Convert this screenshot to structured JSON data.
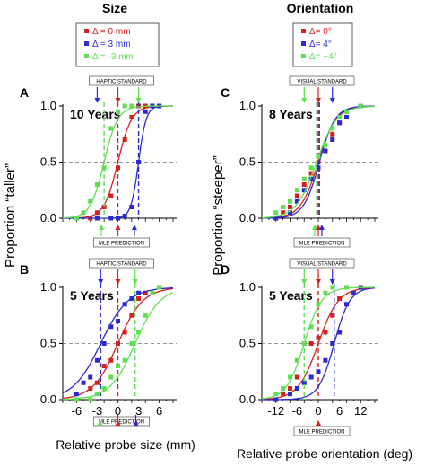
{
  "figure": {
    "col_titles": [
      "Size",
      "Orientation"
    ],
    "ylabel_size": "Proportion “taller”",
    "ylabel_orient": "Proportion “steeper”",
    "xlabel_size": "Relative probe size (mm)",
    "xlabel_orient": "Relative probe orientation (deg)"
  },
  "legends": {
    "size": [
      {
        "label": "Δ = 0 mm",
        "color": "#d62020"
      },
      {
        "label": "Δ = 3 mm",
        "color": "#2a2ad0"
      },
      {
        "label": "Δ = -3 mm",
        "color": "#5ee050"
      }
    ],
    "orient": [
      {
        "label": "Δ= 0°",
        "color": "#d62020"
      },
      {
        "label": "Δ= 4°",
        "color": "#2a2ad0"
      },
      {
        "label": "Δ= −4°",
        "color": "#5ee050"
      }
    ]
  },
  "colors": {
    "red": "#d62020",
    "blue": "#2a2ad0",
    "green": "#5ee050"
  },
  "chart_data": [
    {
      "panel": "A",
      "type": "scatter",
      "age_label": "10 Years",
      "top_box": "HAPTIC STANDARD",
      "bottom_box": "MLE PREDICTION",
      "xlim": [
        -8,
        8
      ],
      "ylim": [
        0,
        1
      ],
      "yticks": [
        "0.0",
        "0.5",
        "1.0"
      ],
      "xticks": [],
      "series": [
        {
          "color": "red",
          "pse": 0,
          "slope": 1.0,
          "points": [
            [
              -6,
              0
            ],
            [
              -4,
              0
            ],
            [
              -3,
              0.05
            ],
            [
              -2,
              0.1
            ],
            [
              -1,
              0.2
            ],
            [
              0,
              0.45
            ],
            [
              1,
              0.7
            ],
            [
              2,
              0.9
            ],
            [
              3,
              1.0
            ],
            [
              4,
              1.0
            ],
            [
              6,
              1.0
            ]
          ]
        },
        {
          "color": "blue",
          "pse": 3,
          "slope": 1.8,
          "points": [
            [
              -6,
              0
            ],
            [
              -3,
              0
            ],
            [
              -1,
              0
            ],
            [
              0,
              0
            ],
            [
              1,
              0.02
            ],
            [
              2,
              0.1
            ],
            [
              3,
              0.5
            ],
            [
              4,
              0.95
            ],
            [
              5,
              1.0
            ],
            [
              6,
              1.0
            ]
          ]
        },
        {
          "color": "green",
          "pse": -2,
          "slope": 1.0,
          "points": [
            [
              -6,
              0
            ],
            [
              -5,
              0.05
            ],
            [
              -4,
              0.15
            ],
            [
              -3,
              0.3
            ],
            [
              -2,
              0.45
            ],
            [
              -1,
              0.8
            ],
            [
              0,
              0.95
            ],
            [
              1,
              1.0
            ],
            [
              2,
              1.0
            ]
          ]
        }
      ],
      "arrows_top": [
        {
          "x": -3,
          "color": "blue"
        },
        {
          "x": 0,
          "color": "red"
        },
        {
          "x": 3,
          "color": "green"
        }
      ],
      "arrows_bottom": [
        {
          "x": -2.4,
          "color": "green"
        },
        {
          "x": 0,
          "color": "red"
        },
        {
          "x": 2.4,
          "color": "blue"
        }
      ]
    },
    {
      "panel": "B",
      "type": "scatter",
      "age_label": "5 Years",
      "top_box": "HAPTIC STANDARD",
      "bottom_box": "MLE PREDICTION",
      "xlim": [
        -8,
        8
      ],
      "ylim": [
        0,
        1
      ],
      "yticks": [
        "0.0",
        "0.5",
        "1.0"
      ],
      "xticks": [
        "-6",
        "-3",
        "0",
        "3",
        "6"
      ],
      "series": [
        {
          "color": "red",
          "pse": 0,
          "slope": 0.55,
          "points": [
            [
              -6,
              0
            ],
            [
              -4,
              0.1
            ],
            [
              -3,
              0.15
            ],
            [
              -2,
              0.3
            ],
            [
              -1,
              0.35
            ],
            [
              0,
              0.5
            ],
            [
              1,
              0.6
            ],
            [
              2,
              0.75
            ],
            [
              3,
              0.9
            ],
            [
              4,
              0.95
            ],
            [
              6,
              1.0
            ]
          ]
        },
        {
          "color": "blue",
          "pse": -2.5,
          "slope": 0.5,
          "points": [
            [
              -6,
              0.05
            ],
            [
              -5,
              0.15
            ],
            [
              -4,
              0.2
            ],
            [
              -3,
              0.35
            ],
            [
              -2,
              0.5
            ],
            [
              -1,
              0.65
            ],
            [
              0,
              0.7
            ],
            [
              1,
              0.85
            ],
            [
              2,
              0.9
            ],
            [
              3,
              0.95
            ],
            [
              6,
              1.0
            ]
          ]
        },
        {
          "color": "green",
          "pse": 2.5,
          "slope": 0.55,
          "points": [
            [
              -6,
              0
            ],
            [
              -4,
              0
            ],
            [
              -3,
              0.05
            ],
            [
              -2,
              0.1
            ],
            [
              -1,
              0.2
            ],
            [
              0,
              0.3
            ],
            [
              1,
              0.35
            ],
            [
              2,
              0.5
            ],
            [
              3,
              0.6
            ],
            [
              4,
              0.75
            ],
            [
              5,
              0.95
            ],
            [
              6,
              1.0
            ]
          ]
        }
      ],
      "arrows_top": [
        {
          "x": -2.5,
          "color": "blue"
        },
        {
          "x": 0,
          "color": "red"
        },
        {
          "x": 2.5,
          "color": "green"
        }
      ],
      "arrows_bottom": [
        {
          "x": -2.6,
          "color": "green"
        },
        {
          "x": 0,
          "color": "red"
        },
        {
          "x": 2.6,
          "color": "blue"
        }
      ]
    },
    {
      "panel": "C",
      "type": "scatter",
      "age_label": "8 Years",
      "top_box": "VISUAL STANDARD",
      "bottom_box": "MLE PREDICTION",
      "xlim": [
        -16,
        16
      ],
      "ylim": [
        0,
        1
      ],
      "yticks": [
        "0.0",
        "0.5",
        "1.0"
      ],
      "xticks": [],
      "series": [
        {
          "color": "red",
          "pse": 0,
          "slope": 0.4,
          "points": [
            [
              -12,
              0
            ],
            [
              -10,
              0.05
            ],
            [
              -8,
              0.1
            ],
            [
              -6,
              0.2
            ],
            [
              -4,
              0.3
            ],
            [
              -2,
              0.4
            ],
            [
              0,
              0.5
            ],
            [
              2,
              0.6
            ],
            [
              4,
              0.75
            ],
            [
              6,
              0.85
            ],
            [
              8,
              0.95
            ],
            [
              12,
              1.0
            ]
          ]
        },
        {
          "color": "blue",
          "pse": 0.3,
          "slope": 0.45,
          "points": [
            [
              -12,
              0
            ],
            [
              -8,
              0.05
            ],
            [
              -6,
              0.15
            ],
            [
              -4,
              0.25
            ],
            [
              -2,
              0.35
            ],
            [
              0,
              0.45
            ],
            [
              2,
              0.6
            ],
            [
              4,
              0.7
            ],
            [
              6,
              0.85
            ],
            [
              8,
              0.9
            ],
            [
              12,
              1.0
            ]
          ]
        },
        {
          "color": "green",
          "pse": -0.5,
          "slope": 0.35,
          "points": [
            [
              -12,
              0.05
            ],
            [
              -10,
              0.1
            ],
            [
              -8,
              0.15
            ],
            [
              -6,
              0.25
            ],
            [
              -4,
              0.35
            ],
            [
              -2,
              0.45
            ],
            [
              0,
              0.55
            ],
            [
              2,
              0.65
            ],
            [
              4,
              0.8
            ],
            [
              6,
              0.9
            ],
            [
              8,
              0.95
            ],
            [
              12,
              1.0
            ]
          ]
        }
      ],
      "arrows_top": [
        {
          "x": -4,
          "color": "green"
        },
        {
          "x": 0,
          "color": "red"
        },
        {
          "x": 4,
          "color": "blue"
        }
      ],
      "arrows_bottom": [
        {
          "x": -1,
          "color": "green"
        },
        {
          "x": 0,
          "color": "red"
        },
        {
          "x": 1,
          "color": "blue"
        }
      ]
    },
    {
      "panel": "D",
      "type": "scatter",
      "age_label": "5 Years",
      "top_box": "VISUAL STANDARD",
      "bottom_box": "MLE PREDICTION",
      "xlim": [
        -16,
        16
      ],
      "ylim": [
        0,
        1
      ],
      "yticks": [
        "0.0",
        "0.5",
        "1.0"
      ],
      "xticks": [
        "-12",
        "-6",
        "0",
        "6",
        "12"
      ],
      "series": [
        {
          "color": "red",
          "pse": 0,
          "slope": 0.35,
          "points": [
            [
              -12,
              0
            ],
            [
              -10,
              0.05
            ],
            [
              -8,
              0.1
            ],
            [
              -6,
              0.2
            ],
            [
              -4,
              0.5
            ],
            [
              -2,
              0.5
            ],
            [
              0,
              0.55
            ],
            [
              2,
              0.6
            ],
            [
              4,
              0.75
            ],
            [
              6,
              0.9
            ],
            [
              8,
              1.0
            ],
            [
              12,
              1.0
            ]
          ]
        },
        {
          "color": "blue",
          "pse": 4.5,
          "slope": 0.45,
          "points": [
            [
              -12,
              0
            ],
            [
              -8,
              0.05
            ],
            [
              -6,
              0.1
            ],
            [
              -4,
              0.15
            ],
            [
              -2,
              0.2
            ],
            [
              0,
              0.25
            ],
            [
              2,
              0.35
            ],
            [
              4,
              0.5
            ],
            [
              6,
              0.6
            ],
            [
              8,
              0.85
            ],
            [
              10,
              0.95
            ],
            [
              12,
              1.0
            ]
          ]
        },
        {
          "color": "green",
          "pse": -4,
          "slope": 0.4,
          "points": [
            [
              -12,
              0.05
            ],
            [
              -10,
              0.1
            ],
            [
              -8,
              0.2
            ],
            [
              -6,
              0.35
            ],
            [
              -4,
              0.5
            ],
            [
              -2,
              0.65
            ],
            [
              0,
              0.85
            ],
            [
              2,
              0.95
            ],
            [
              4,
              1.0
            ],
            [
              8,
              1.0
            ]
          ]
        }
      ],
      "arrows_top": [
        {
          "x": -4,
          "color": "green"
        },
        {
          "x": 0,
          "color": "red"
        },
        {
          "x": 4,
          "color": "blue"
        }
      ],
      "arrows_bottom": [
        {
          "x": 0,
          "color": "red"
        }
      ]
    }
  ]
}
